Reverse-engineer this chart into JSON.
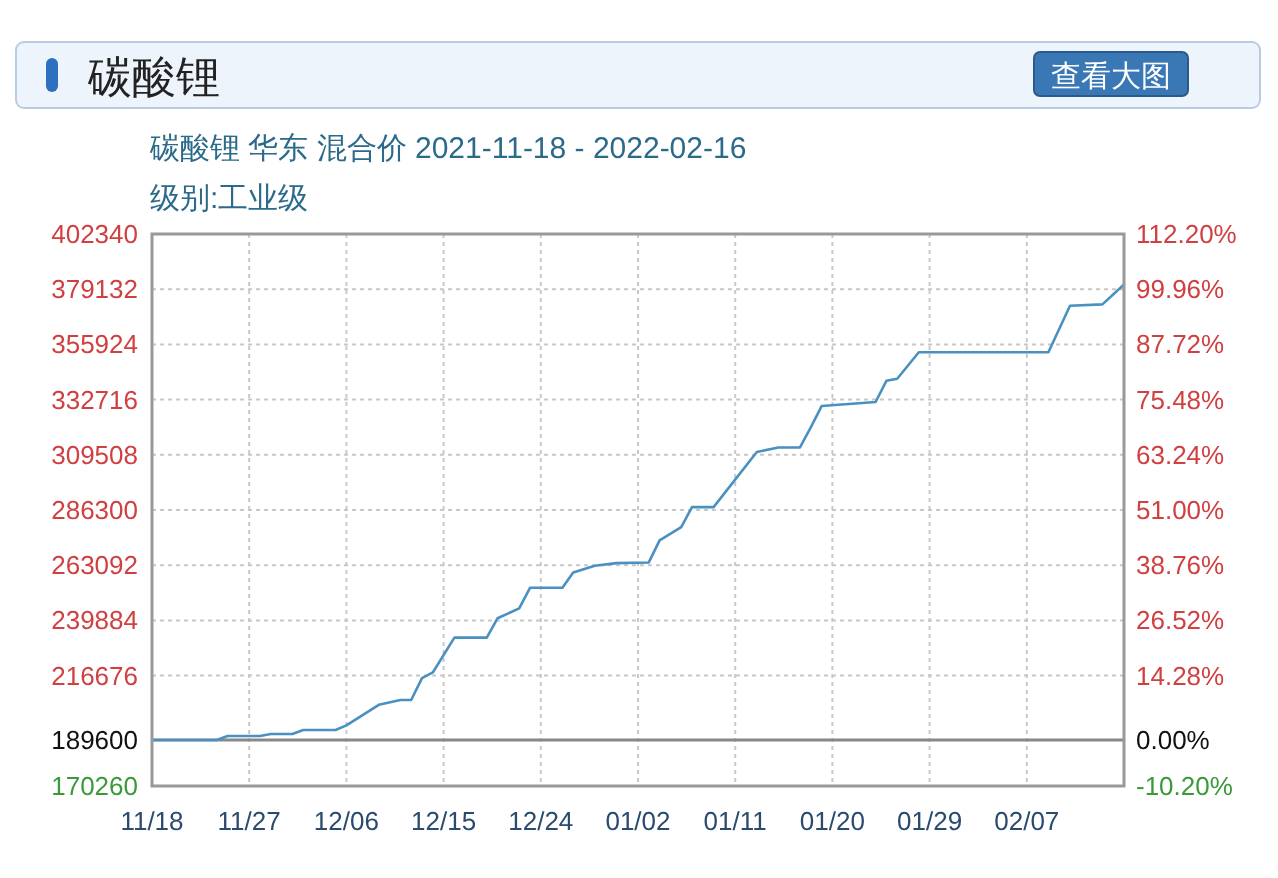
{
  "chart_data": {
    "type": "line",
    "title": "碳酸锂",
    "subtitle": "碳酸锂 华东 混合价 2021-11-18 - 2022-02-16",
    "annotations": [
      "级别:工业级",
      "查看大图"
    ],
    "x": [
      "2021-11-18",
      "2021-11-24",
      "2021-11-25",
      "2021-11-28",
      "2021-11-29",
      "2021-12-01",
      "2021-12-02",
      "2021-12-05",
      "2021-12-06",
      "2021-12-09",
      "2021-12-11",
      "2021-12-12",
      "2021-12-13",
      "2021-12-14",
      "2021-12-16",
      "2021-12-19",
      "2021-12-20",
      "2021-12-22",
      "2021-12-23",
      "2021-12-26",
      "2021-12-27",
      "2021-12-29",
      "2021-12-31",
      "2022-01-03",
      "2022-01-04",
      "2022-01-06",
      "2022-01-07",
      "2022-01-09",
      "2022-01-13",
      "2022-01-15",
      "2022-01-17",
      "2022-01-18",
      "2022-01-19",
      "2022-01-24",
      "2022-01-25",
      "2022-01-26",
      "2022-01-28",
      "2022-02-09",
      "2022-02-11",
      "2022-02-14",
      "2022-02-16"
    ],
    "series": [
      {
        "color": "#4a90c0",
        "values": [
          189600,
          189600,
          191300,
          191300,
          192100,
          192100,
          193800,
          193800,
          195750,
          204400,
          206400,
          206400,
          215600,
          218000,
          232650,
          232650,
          240800,
          244950,
          253600,
          253600,
          260050,
          262850,
          263970,
          264250,
          273500,
          279100,
          287500,
          287500,
          310700,
          312600,
          312600,
          321000,
          330000,
          331700,
          340600,
          341500,
          352600,
          352600,
          372200,
          372750,
          381100
        ]
      }
    ],
    "xlim": [
      "2021-11-18",
      "2022-02-16"
    ],
    "xticks": [
      {
        "value": "2021-11-18",
        "label": "11/18"
      },
      {
        "value": "2021-11-27",
        "label": "11/27"
      },
      {
        "value": "2021-12-06",
        "label": "12/06"
      },
      {
        "value": "2021-12-15",
        "label": "12/15"
      },
      {
        "value": "2021-12-24",
        "label": "12/24"
      },
      {
        "value": "2022-01-02",
        "label": "01/02"
      },
      {
        "value": "2022-01-11",
        "label": "01/11"
      },
      {
        "value": "2022-01-20",
        "label": "01/20"
      },
      {
        "value": "2022-01-29",
        "label": "01/29"
      },
      {
        "value": "2022-02-07",
        "label": "02/07"
      }
    ],
    "ylim": [
      170260,
      402340
    ],
    "yticks": [
      170260,
      189600,
      216676,
      239884,
      263092,
      286300,
      309508,
      332716,
      355924,
      379132,
      402340
    ],
    "y2lim": [
      -10.2,
      112.2
    ],
    "y2ticks": [
      {
        "value": -10.2,
        "label": "-10.20%"
      },
      {
        "value": 0,
        "label": "0.00%"
      },
      {
        "value": 14.28,
        "label": "14.28%"
      },
      {
        "value": 26.52,
        "label": "26.52%"
      },
      {
        "value": 38.76,
        "label": "38.76%"
      },
      {
        "value": 51,
        "label": "51.00%"
      },
      {
        "value": 63.24,
        "label": "63.24%"
      },
      {
        "value": 75.48,
        "label": "75.48%"
      },
      {
        "value": 87.72,
        "label": "87.72%"
      },
      {
        "value": 99.96,
        "label": "99.96%"
      },
      {
        "value": 112.2,
        "label": "112.20%"
      }
    ],
    "ref_lines": [
      {
        "axis": "y",
        "value": 189600,
        "color": "#888888"
      }
    ],
    "grid": true,
    "line_style": "solid"
  }
}
